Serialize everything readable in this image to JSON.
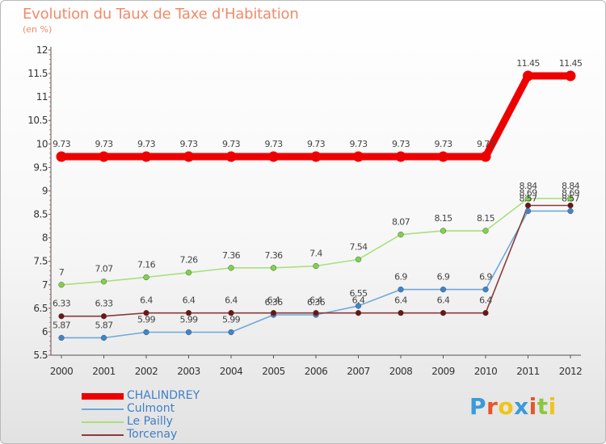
{
  "chart_data": {
    "type": "line",
    "title": "Evolution du Taux de Taxe d'Habitation",
    "ylabel": "(en %)",
    "xlabel": "",
    "categories": [
      "2000",
      "2001",
      "2002",
      "2003",
      "2004",
      "2005",
      "2006",
      "2007",
      "2008",
      "2009",
      "2010",
      "2011",
      "2012"
    ],
    "ylim": [
      5.5,
      12
    ],
    "yticks": [
      "5.5",
      "6",
      "6.5",
      "7",
      "7.5",
      "8",
      "8.5",
      "9",
      "9.5",
      "10",
      "10.5",
      "11",
      "11.5",
      "12"
    ],
    "series": [
      {
        "name": "CHALINDREY",
        "color": "#ee0000",
        "point_color": "#ee0000",
        "values": [
          9.73,
          9.73,
          9.73,
          9.73,
          9.73,
          9.73,
          9.73,
          9.73,
          9.73,
          9.73,
          9.73,
          11.45,
          11.45
        ],
        "labels": [
          "9.73",
          "9.73",
          "9.73",
          "9.73",
          "9.73",
          "9.73",
          "9.73",
          "9.73",
          "9.73",
          "9.73",
          "9.73",
          "11.45",
          "11.45"
        ]
      },
      {
        "name": "Culmont",
        "color": "#6fa8dc",
        "point_color": "#3c86c9",
        "values": [
          5.87,
          5.87,
          5.99,
          5.99,
          5.99,
          6.36,
          6.36,
          6.55,
          6.9,
          6.9,
          6.9,
          8.57,
          8.57
        ],
        "labels": [
          "5.87",
          "5.87",
          "5.99",
          "5.99",
          "5.99",
          "6.36",
          "6.36",
          "6.55",
          "6.9",
          "6.9",
          "6.9",
          "8.57",
          "8.57"
        ]
      },
      {
        "name": "Le Pailly",
        "color": "#a9e07c",
        "point_color": "#7ed348",
        "values": [
          7,
          7.07,
          7.16,
          7.26,
          7.36,
          7.36,
          7.4,
          7.54,
          8.07,
          8.15,
          8.15,
          8.84,
          8.84
        ],
        "labels": [
          "7",
          "7.07",
          "7.16",
          "7.26",
          "7.36",
          "7.36",
          "7.4",
          "7.54",
          "8.07",
          "8.15",
          "8.15",
          "8.84",
          "8.84"
        ]
      },
      {
        "name": "Torcenay",
        "color": "#8a3a3a",
        "point_color": "#6b1515",
        "values": [
          6.33,
          6.33,
          6.4,
          6.4,
          6.4,
          6.4,
          6.4,
          6.4,
          6.4,
          6.4,
          6.4,
          8.69,
          8.69
        ],
        "labels": [
          "6.33",
          "6.33",
          "6.4",
          "6.4",
          "6.4",
          "6.4",
          "6.4",
          "6.4",
          "6.4",
          "6.4",
          "6.4",
          "8.69",
          "8.69"
        ]
      }
    ],
    "legend_position": "bottom-left",
    "grid": false
  },
  "brand": {
    "text": "Prox iti",
    "letters": [
      "P",
      "r",
      "o",
      "x",
      "i",
      "t",
      "i"
    ],
    "colors": [
      "#3b9ad9",
      "#e8552a",
      "#f0c419",
      "#3b9ad9",
      "#e8552a",
      "#8cc63f",
      "#f0c419"
    ]
  }
}
